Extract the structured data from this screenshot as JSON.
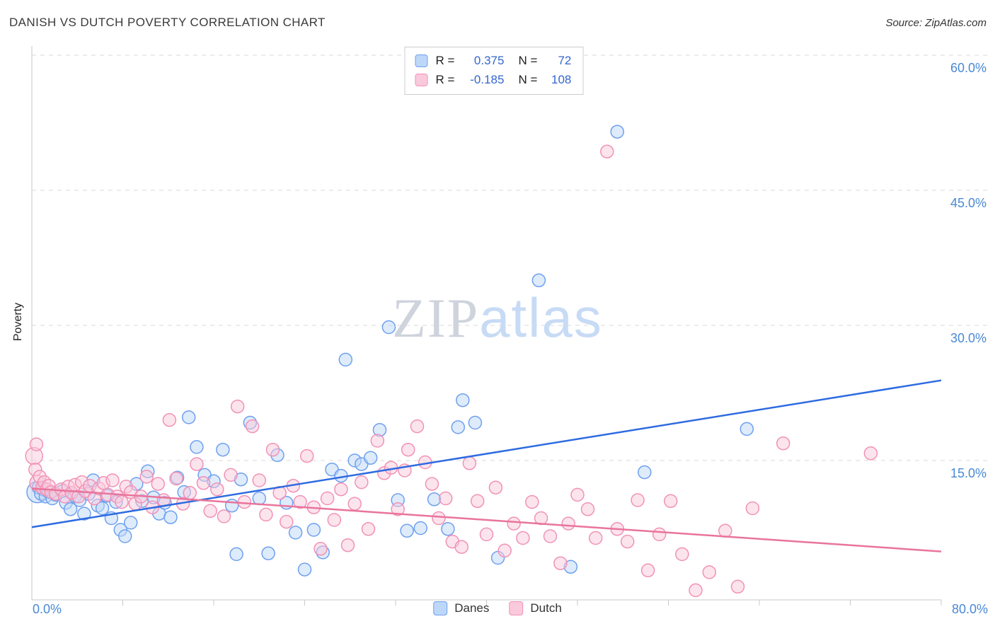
{
  "header": {
    "title": "DANISH VS DUTCH POVERTY CORRELATION CHART",
    "source": "Source: ZipAtlas.com"
  },
  "watermark": {
    "zip": "ZIP",
    "atlas": "atlas"
  },
  "stats_legend": {
    "rows": [
      {
        "series": "danes",
        "r_label": "R =",
        "r_value": "0.375",
        "n_label": "N =",
        "n_value": "72"
      },
      {
        "series": "dutch",
        "r_label": "R =",
        "r_value": "-0.185",
        "n_label": "N =",
        "n_value": "108"
      }
    ]
  },
  "bottom_legend": {
    "items": [
      {
        "id": "danes",
        "label": "Danes"
      },
      {
        "id": "dutch",
        "label": "Dutch"
      }
    ]
  },
  "axes": {
    "y_label": "Poverty",
    "x_min_label": "0.0%",
    "x_max_label": "80.0%"
  },
  "colors": {
    "tick_label": "#4a89d4",
    "legend_value": "#3366cc",
    "danes_fill": "#bdd7f8",
    "danes_stroke": "#6fa0ef",
    "dutch_fill": "#fac9dc",
    "dutch_stroke": "#f192b6",
    "grid": "#dadada",
    "axis": "#c9c9c9"
  },
  "chart_data": {
    "type": "scatter",
    "title": "DANISH VS DUTCH POVERTY CORRELATION CHART",
    "xlabel": "",
    "ylabel": "Poverty",
    "xlim": [
      0,
      80
    ],
    "ylim": [
      0,
      62
    ],
    "x_tick_step": 8,
    "grid": "horizontal-dashed",
    "legend_position": "top-center and bottom-center",
    "y_ticks": [
      {
        "value": 15,
        "label": "15.0%"
      },
      {
        "value": 30,
        "label": "30.0%"
      },
      {
        "value": 45,
        "label": "45.0%"
      },
      {
        "value": 60,
        "label": "60.0%"
      }
    ],
    "series": [
      {
        "name": "Danes",
        "R": 0.375,
        "N": 72,
        "marker_fill": "#bdd7f8",
        "marker_stroke": "#6fa0ef",
        "trend_color": "#2e6be0",
        "trend": {
          "x": [
            0,
            80
          ],
          "y": [
            7.6,
            23.9
          ]
        },
        "points": [
          [
            0.5,
            11.5,
            15
          ],
          [
            0.6,
            12.0
          ],
          [
            0.8,
            11.3
          ],
          [
            1.0,
            11.8
          ],
          [
            1.2,
            11.0
          ],
          [
            1.5,
            11.5
          ],
          [
            1.8,
            10.8
          ],
          [
            2.1,
            11.2
          ],
          [
            2.7,
            11.6
          ],
          [
            3.0,
            10.3
          ],
          [
            3.4,
            9.6
          ],
          [
            3.8,
            11.0
          ],
          [
            4.2,
            10.6
          ],
          [
            4.6,
            9.1
          ],
          [
            5.0,
            11.3
          ],
          [
            5.4,
            12.8
          ],
          [
            5.8,
            10.0
          ],
          [
            6.2,
            9.7
          ],
          [
            6.6,
            11.1
          ],
          [
            7.0,
            8.6
          ],
          [
            7.4,
            10.4
          ],
          [
            7.8,
            7.3
          ],
          [
            8.2,
            6.6
          ],
          [
            8.7,
            8.1
          ],
          [
            9.2,
            12.4
          ],
          [
            9.7,
            10.5
          ],
          [
            10.2,
            13.8
          ],
          [
            10.7,
            10.9
          ],
          [
            11.2,
            9.1
          ],
          [
            11.7,
            10.3
          ],
          [
            12.2,
            8.7
          ],
          [
            12.8,
            13.1
          ],
          [
            13.4,
            11.5
          ],
          [
            13.8,
            19.8
          ],
          [
            14.5,
            16.5
          ],
          [
            15.2,
            13.4
          ],
          [
            16.0,
            12.7
          ],
          [
            16.8,
            16.2
          ],
          [
            17.6,
            10.0
          ],
          [
            18.0,
            4.6
          ],
          [
            18.4,
            12.9
          ],
          [
            19.2,
            19.2
          ],
          [
            20.0,
            10.8
          ],
          [
            20.8,
            4.7
          ],
          [
            21.6,
            15.6
          ],
          [
            22.4,
            10.3
          ],
          [
            23.2,
            7.0
          ],
          [
            24.0,
            2.9
          ],
          [
            24.8,
            7.3
          ],
          [
            25.6,
            4.8
          ],
          [
            26.4,
            14.0
          ],
          [
            27.2,
            13.3
          ],
          [
            27.6,
            26.2
          ],
          [
            28.4,
            15.0
          ],
          [
            29.0,
            14.6
          ],
          [
            29.8,
            15.3
          ],
          [
            30.6,
            18.4
          ],
          [
            31.4,
            29.8
          ],
          [
            32.2,
            10.6
          ],
          [
            33.0,
            7.2
          ],
          [
            34.2,
            7.5
          ],
          [
            35.4,
            10.7
          ],
          [
            36.6,
            7.4
          ],
          [
            37.5,
            18.7
          ],
          [
            37.9,
            21.7
          ],
          [
            39.0,
            19.2
          ],
          [
            41.0,
            4.2
          ],
          [
            44.6,
            35.0
          ],
          [
            47.4,
            3.2
          ],
          [
            51.5,
            51.5
          ],
          [
            53.9,
            13.7
          ],
          [
            62.9,
            18.5
          ]
        ]
      },
      {
        "name": "Dutch",
        "R": -0.185,
        "N": 108,
        "marker_fill": "#fac9dc",
        "marker_stroke": "#f192b6",
        "trend_color": "#e9749b",
        "trend": {
          "x": [
            0,
            80
          ],
          "y": [
            11.9,
            4.9
          ]
        },
        "points": [
          [
            0.2,
            15.5,
            12
          ],
          [
            0.3,
            14.0
          ],
          [
            0.4,
            16.8
          ],
          [
            0.5,
            12.5,
            11
          ],
          [
            0.7,
            13.2
          ],
          [
            0.9,
            12.0
          ],
          [
            1.1,
            12.6
          ],
          [
            1.3,
            11.8
          ],
          [
            1.5,
            12.2
          ],
          [
            1.7,
            11.5
          ],
          [
            2.1,
            11.3
          ],
          [
            2.6,
            11.8
          ],
          [
            2.9,
            11.0
          ],
          [
            3.2,
            12.1
          ],
          [
            3.5,
            11.4
          ],
          [
            3.8,
            12.3
          ],
          [
            4.1,
            11.0
          ],
          [
            4.4,
            12.6
          ],
          [
            4.7,
            11.6
          ],
          [
            5.1,
            12.2
          ],
          [
            5.5,
            10.8
          ],
          [
            5.9,
            11.9
          ],
          [
            6.3,
            12.5
          ],
          [
            6.7,
            11.2
          ],
          [
            7.1,
            12.8
          ],
          [
            7.5,
            11.0
          ],
          [
            7.9,
            10.4
          ],
          [
            8.3,
            12.1
          ],
          [
            8.7,
            11.5
          ],
          [
            9.1,
            10.2
          ],
          [
            9.6,
            11.0
          ],
          [
            10.1,
            13.2
          ],
          [
            10.6,
            9.8
          ],
          [
            11.1,
            12.4
          ],
          [
            11.6,
            10.6
          ],
          [
            12.1,
            19.5
          ],
          [
            12.7,
            13.0
          ],
          [
            13.3,
            10.2
          ],
          [
            13.9,
            11.4
          ],
          [
            14.5,
            14.6
          ],
          [
            15.1,
            12.5
          ],
          [
            15.7,
            9.4
          ],
          [
            16.3,
            11.8
          ],
          [
            16.9,
            8.8
          ],
          [
            17.5,
            13.4
          ],
          [
            18.1,
            21.0
          ],
          [
            18.7,
            10.4
          ],
          [
            19.4,
            18.8
          ],
          [
            20.0,
            12.8
          ],
          [
            20.6,
            9.0
          ],
          [
            21.2,
            16.2
          ],
          [
            21.8,
            11.4
          ],
          [
            22.4,
            8.2
          ],
          [
            23.0,
            12.2
          ],
          [
            23.6,
            10.4
          ],
          [
            24.2,
            15.5
          ],
          [
            24.8,
            9.8
          ],
          [
            25.4,
            5.2
          ],
          [
            26.0,
            10.8
          ],
          [
            26.6,
            8.4
          ],
          [
            27.2,
            11.8
          ],
          [
            27.8,
            5.6
          ],
          [
            28.4,
            10.2
          ],
          [
            29.0,
            12.6
          ],
          [
            29.6,
            7.4
          ],
          [
            30.4,
            17.2
          ],
          [
            31.0,
            13.6
          ],
          [
            31.6,
            14.2
          ],
          [
            32.2,
            9.6
          ],
          [
            32.8,
            13.9
          ],
          [
            33.1,
            16.2
          ],
          [
            33.9,
            18.8
          ],
          [
            34.6,
            14.8
          ],
          [
            35.2,
            12.4
          ],
          [
            35.8,
            8.6
          ],
          [
            36.4,
            10.8
          ],
          [
            37.0,
            6.0
          ],
          [
            37.8,
            5.4
          ],
          [
            38.5,
            14.7
          ],
          [
            39.2,
            10.5
          ],
          [
            40.0,
            6.8
          ],
          [
            40.8,
            12.0
          ],
          [
            41.6,
            5.0
          ],
          [
            42.4,
            8.0
          ],
          [
            43.2,
            6.4
          ],
          [
            44.0,
            10.4
          ],
          [
            44.8,
            8.6
          ],
          [
            45.6,
            6.6
          ],
          [
            46.5,
            3.6
          ],
          [
            47.2,
            8.0
          ],
          [
            48.0,
            11.2
          ],
          [
            48.9,
            9.6
          ],
          [
            49.6,
            6.4
          ],
          [
            50.6,
            49.3
          ],
          [
            51.5,
            7.4
          ],
          [
            52.4,
            6.0
          ],
          [
            53.3,
            10.6
          ],
          [
            54.2,
            2.8
          ],
          [
            55.2,
            6.8
          ],
          [
            56.2,
            10.5
          ],
          [
            57.2,
            4.6
          ],
          [
            58.4,
            0.6
          ],
          [
            59.6,
            2.6
          ],
          [
            61.0,
            7.2
          ],
          [
            62.1,
            1.0
          ],
          [
            63.4,
            9.7
          ],
          [
            66.1,
            16.9
          ],
          [
            73.8,
            15.8
          ]
        ]
      }
    ]
  }
}
